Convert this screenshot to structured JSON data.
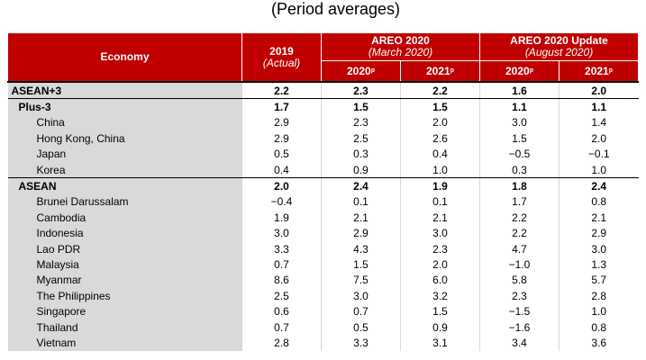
{
  "subtitle": "(Period averages)",
  "header": {
    "economy": "Economy",
    "y2019": "2019",
    "y2019_sub": "(Actual)",
    "areo": "AREO 2020",
    "areo_sub": "(March 2020)",
    "update": "AREO 2020 Update",
    "update_sub": "(August 2020)",
    "y2020": "2020",
    "y2021": "2021",
    "proj_mark": "p"
  },
  "rows": [
    {
      "name": "ASEAN+3",
      "v": [
        "2.2",
        "2.3",
        "2.2",
        "1.6",
        "2.0"
      ]
    },
    {
      "name": "Plus-3",
      "v": [
        "1.7",
        "1.5",
        "1.5",
        "1.1",
        "1.1"
      ]
    },
    {
      "name": "China",
      "v": [
        "2.9",
        "2.3",
        "2.0",
        "3.0",
        "1.4"
      ]
    },
    {
      "name": "Hong Kong, China",
      "v": [
        "2.9",
        "2.5",
        "2.6",
        "1.5",
        "2.0"
      ]
    },
    {
      "name": "Japan",
      "v": [
        "0.5",
        "0.3",
        "0.4",
        "−0.5",
        "−0.1"
      ]
    },
    {
      "name": "Korea",
      "v": [
        "0.4",
        "0.9",
        "1.0",
        "0.3",
        "1.0"
      ]
    },
    {
      "name": "ASEAN",
      "v": [
        "2.0",
        "2.4",
        "1.9",
        "1.8",
        "2.4"
      ]
    },
    {
      "name": "Brunei Darussalam",
      "v": [
        "−0.4",
        "0.1",
        "0.1",
        "1.7",
        "0.8"
      ]
    },
    {
      "name": "Cambodia",
      "v": [
        "1.9",
        "2.1",
        "2.1",
        "2.2",
        "2.1"
      ]
    },
    {
      "name": "Indonesia",
      "v": [
        "3.0",
        "2.9",
        "3.0",
        "2.2",
        "2.9"
      ]
    },
    {
      "name": "Lao PDR",
      "v": [
        "3.3",
        "4.3",
        "2.3",
        "4.7",
        "3.0"
      ]
    },
    {
      "name": "Malaysia",
      "v": [
        "0.7",
        "1.5",
        "2.0",
        "−1.0",
        "1.3"
      ]
    },
    {
      "name": "Myanmar",
      "v": [
        "8.6",
        "7.5",
        "6.0",
        "5.8",
        "5.7"
      ]
    },
    {
      "name": "The Philippines",
      "v": [
        "2.5",
        "3.0",
        "3.2",
        "2.3",
        "2.8"
      ]
    },
    {
      "name": "Singapore",
      "v": [
        "0.6",
        "0.7",
        "1.5",
        "−1.5",
        "1.0"
      ]
    },
    {
      "name": "Thailand",
      "v": [
        "0.7",
        "0.5",
        "0.9",
        "−1.6",
        "0.8"
      ]
    },
    {
      "name": "Vietnam",
      "v": [
        "2.8",
        "3.3",
        "3.1",
        "3.4",
        "3.6"
      ]
    }
  ]
}
